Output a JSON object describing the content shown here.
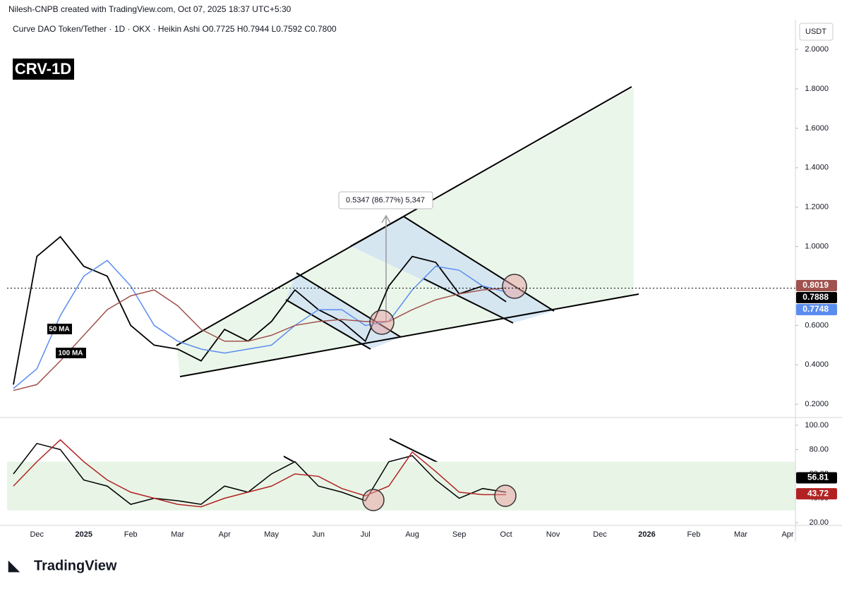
{
  "header": {
    "attribution": "Nilesh-CNPB created with TradingView.com, Oct 07, 2025 18:37 UTC+5:30",
    "logo": "TradingView"
  },
  "chart_data": [
    {
      "type": "line",
      "title": "CRV-1D",
      "subtitle": "Curve DAO Token/Tether · 1D · OKX · Heikin Ashi O0.7725 H0.7944 L0.7592 C0.7800",
      "currency": "USDT",
      "annotation": "0.5347 (86.77%) 5,347",
      "categories": [
        null,
        "Dec",
        null,
        "2025",
        null,
        "Feb",
        null,
        "Mar",
        null,
        "Apr",
        null,
        "May",
        null,
        "Jun",
        null,
        "Jul",
        null,
        "Aug",
        null,
        "Sep",
        null,
        "Oct",
        null,
        "Nov",
        null,
        "Dec",
        null,
        "2026",
        null,
        "Feb",
        null,
        "Mar",
        null,
        "Apr"
      ],
      "ylim": [
        0.14,
        2.14
      ],
      "yticks": [
        {
          "value": 0.2,
          "label": "0.2000"
        },
        {
          "value": 0.4,
          "label": "0.4000"
        },
        {
          "value": 0.6,
          "label": "0.6000"
        },
        {
          "value": 0.8,
          "label": "0.8000"
        },
        {
          "value": 1.0,
          "label": "1.0000"
        },
        {
          "value": 1.2,
          "label": "1.2000"
        },
        {
          "value": 1.4,
          "label": "1.4000"
        },
        {
          "value": 1.6,
          "label": "1.6000"
        },
        {
          "value": 1.8,
          "label": "1.8000"
        },
        {
          "value": 2.0,
          "label": "2.0000"
        }
      ],
      "series": [
        {
          "name": "CRV",
          "color": "#000000",
          "last": 0.7888,
          "values": [
            0.3,
            0.95,
            1.05,
            0.9,
            0.85,
            0.6,
            0.5,
            0.48,
            0.42,
            0.58,
            0.52,
            0.62,
            0.78,
            0.68,
            0.62,
            0.52,
            0.8,
            0.95,
            0.92,
            0.76,
            0.8,
            0.72,
            null,
            null,
            null,
            null,
            null,
            null,
            null,
            null,
            null,
            null,
            null,
            null
          ]
        },
        {
          "name": "50 MA",
          "color": "#5b8def",
          "last": 0.7748,
          "values": [
            0.28,
            0.38,
            0.65,
            0.85,
            0.93,
            0.8,
            0.6,
            0.52,
            0.48,
            0.46,
            0.48,
            0.5,
            0.6,
            0.68,
            0.68,
            0.6,
            0.62,
            0.78,
            0.9,
            0.88,
            0.8,
            0.77,
            null,
            null,
            null,
            null,
            null,
            null,
            null,
            null,
            null,
            null,
            null,
            null
          ]
        },
        {
          "name": "100 MA",
          "color": "#a0524e",
          "last": 0.8019,
          "values": [
            0.27,
            0.3,
            0.42,
            0.55,
            0.68,
            0.75,
            0.78,
            0.7,
            0.58,
            0.52,
            0.52,
            0.55,
            0.6,
            0.62,
            0.63,
            0.62,
            0.62,
            0.68,
            0.73,
            0.76,
            0.78,
            0.79,
            null,
            null,
            null,
            null,
            null,
            null,
            null,
            null,
            null,
            null,
            null,
            null
          ]
        }
      ]
    },
    {
      "type": "line",
      "ylim": [
        17.7,
        104.6
      ],
      "yticks": [
        {
          "value": 20,
          "label": "20.00"
        },
        {
          "value": 40,
          "label": "40.00"
        },
        {
          "value": 60,
          "label": "60.00"
        },
        {
          "value": 80,
          "label": "80.00"
        },
        {
          "value": 100,
          "label": "100.00"
        }
      ],
      "band": [
        30,
        70
      ],
      "series": [
        {
          "color": "#000000",
          "last": 56.81,
          "values": [
            60,
            85,
            80,
            55,
            50,
            35,
            40,
            38,
            35,
            50,
            45,
            60,
            70,
            50,
            45,
            38,
            70,
            75,
            55,
            40,
            48,
            45,
            null,
            null,
            null,
            null,
            null,
            null,
            null,
            null,
            null,
            null,
            null,
            null
          ]
        },
        {
          "color": "#b22222",
          "last": 43.72,
          "values": [
            50,
            70,
            88,
            70,
            55,
            45,
            40,
            35,
            33,
            40,
            45,
            50,
            60,
            58,
            48,
            42,
            50,
            78,
            62,
            45,
            43,
            43,
            null,
            null,
            null,
            null,
            null,
            null,
            null,
            null,
            null,
            null,
            null,
            null
          ]
        }
      ]
    }
  ]
}
